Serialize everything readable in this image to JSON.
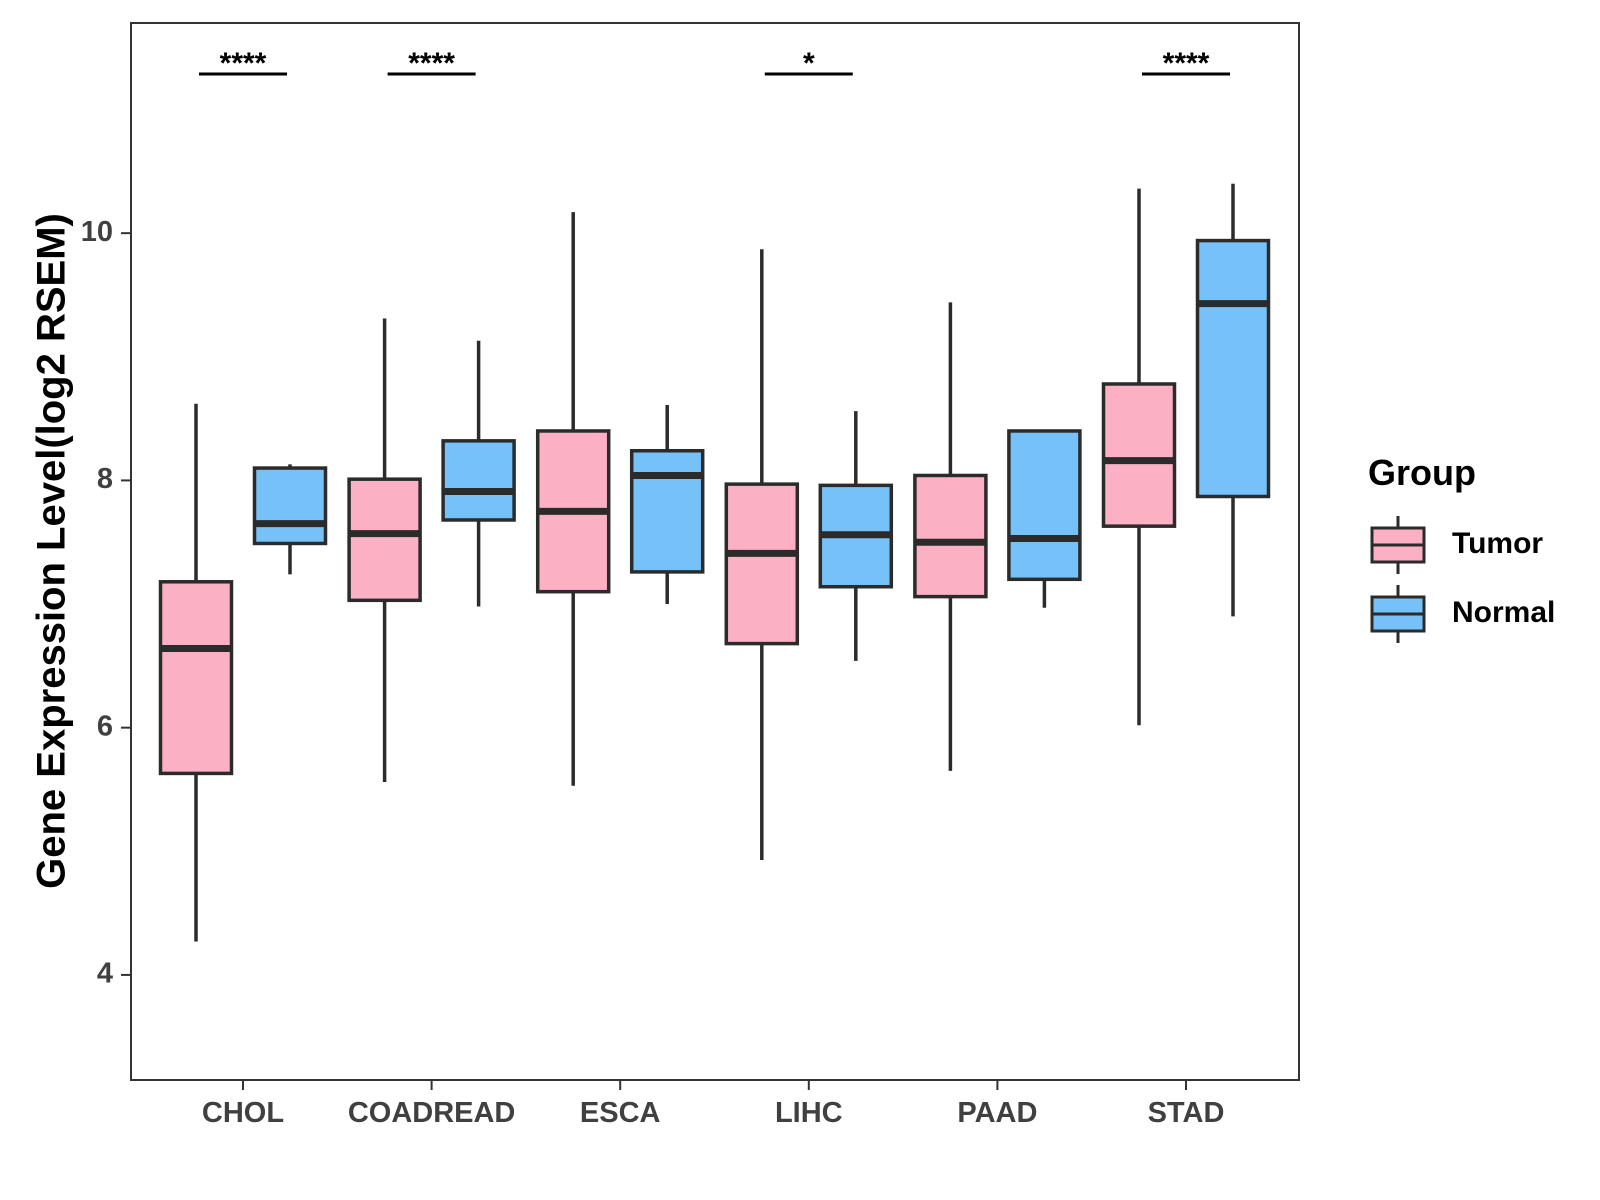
{
  "chart_data": {
    "type": "boxplot",
    "title": "",
    "xlabel": "",
    "ylabel": "Gene Expression Level(log2 RSEM)",
    "ylim": [
      3.15,
      11.7
    ],
    "yticks": [
      4,
      6,
      8,
      10
    ],
    "categories": [
      "CHOL",
      "COADREAD",
      "ESCA",
      "LIHC",
      "PAAD",
      "STAD"
    ],
    "legend": {
      "title": "Group",
      "position": "right",
      "entries": [
        "Tumor",
        "Normal"
      ]
    },
    "series": [
      {
        "name": "Tumor",
        "color": "#FBB1C3",
        "boxes": [
          {
            "category": "CHOL",
            "min": 4.27,
            "q1": 5.63,
            "median": 6.64,
            "q3": 7.18,
            "max": 8.62
          },
          {
            "category": "COADREAD",
            "min": 5.56,
            "q1": 7.03,
            "median": 7.57,
            "q3": 8.01,
            "max": 9.31
          },
          {
            "category": "ESCA",
            "min": 5.53,
            "q1": 7.1,
            "median": 7.75,
            "q3": 8.4,
            "max": 10.17
          },
          {
            "category": "LIHC",
            "min": 4.93,
            "q1": 6.68,
            "median": 7.41,
            "q3": 7.97,
            "max": 9.87
          },
          {
            "category": "PAAD",
            "min": 5.65,
            "q1": 7.06,
            "median": 7.5,
            "q3": 8.04,
            "max": 9.44
          },
          {
            "category": "STAD",
            "min": 6.02,
            "q1": 7.63,
            "median": 8.16,
            "q3": 8.78,
            "max": 10.36
          }
        ]
      },
      {
        "name": "Normal",
        "color": "#76C1F8",
        "boxes": [
          {
            "category": "CHOL",
            "min": 7.24,
            "q1": 7.49,
            "median": 7.65,
            "q3": 8.1,
            "max": 8.13
          },
          {
            "category": "COADREAD",
            "min": 6.98,
            "q1": 7.68,
            "median": 7.91,
            "q3": 8.32,
            "max": 9.13
          },
          {
            "category": "ESCA",
            "min": 7.0,
            "q1": 7.26,
            "median": 8.04,
            "q3": 8.24,
            "max": 8.61
          },
          {
            "category": "LIHC",
            "min": 6.54,
            "q1": 7.14,
            "median": 7.56,
            "q3": 7.96,
            "max": 8.56
          },
          {
            "category": "PAAD",
            "min": 6.97,
            "q1": 7.2,
            "median": 7.53,
            "q3": 8.4,
            "max": 8.4
          },
          {
            "category": "STAD",
            "min": 6.9,
            "q1": 7.87,
            "median": 9.43,
            "q3": 9.94,
            "max": 10.4
          }
        ]
      }
    ],
    "significance": [
      {
        "category": "CHOL",
        "label": "****"
      },
      {
        "category": "COADREAD",
        "label": "****"
      },
      {
        "category": "ESCA",
        "label": ""
      },
      {
        "category": "LIHC",
        "label": "*"
      },
      {
        "category": "PAAD",
        "label": ""
      },
      {
        "category": "STAD",
        "label": "****"
      }
    ]
  }
}
